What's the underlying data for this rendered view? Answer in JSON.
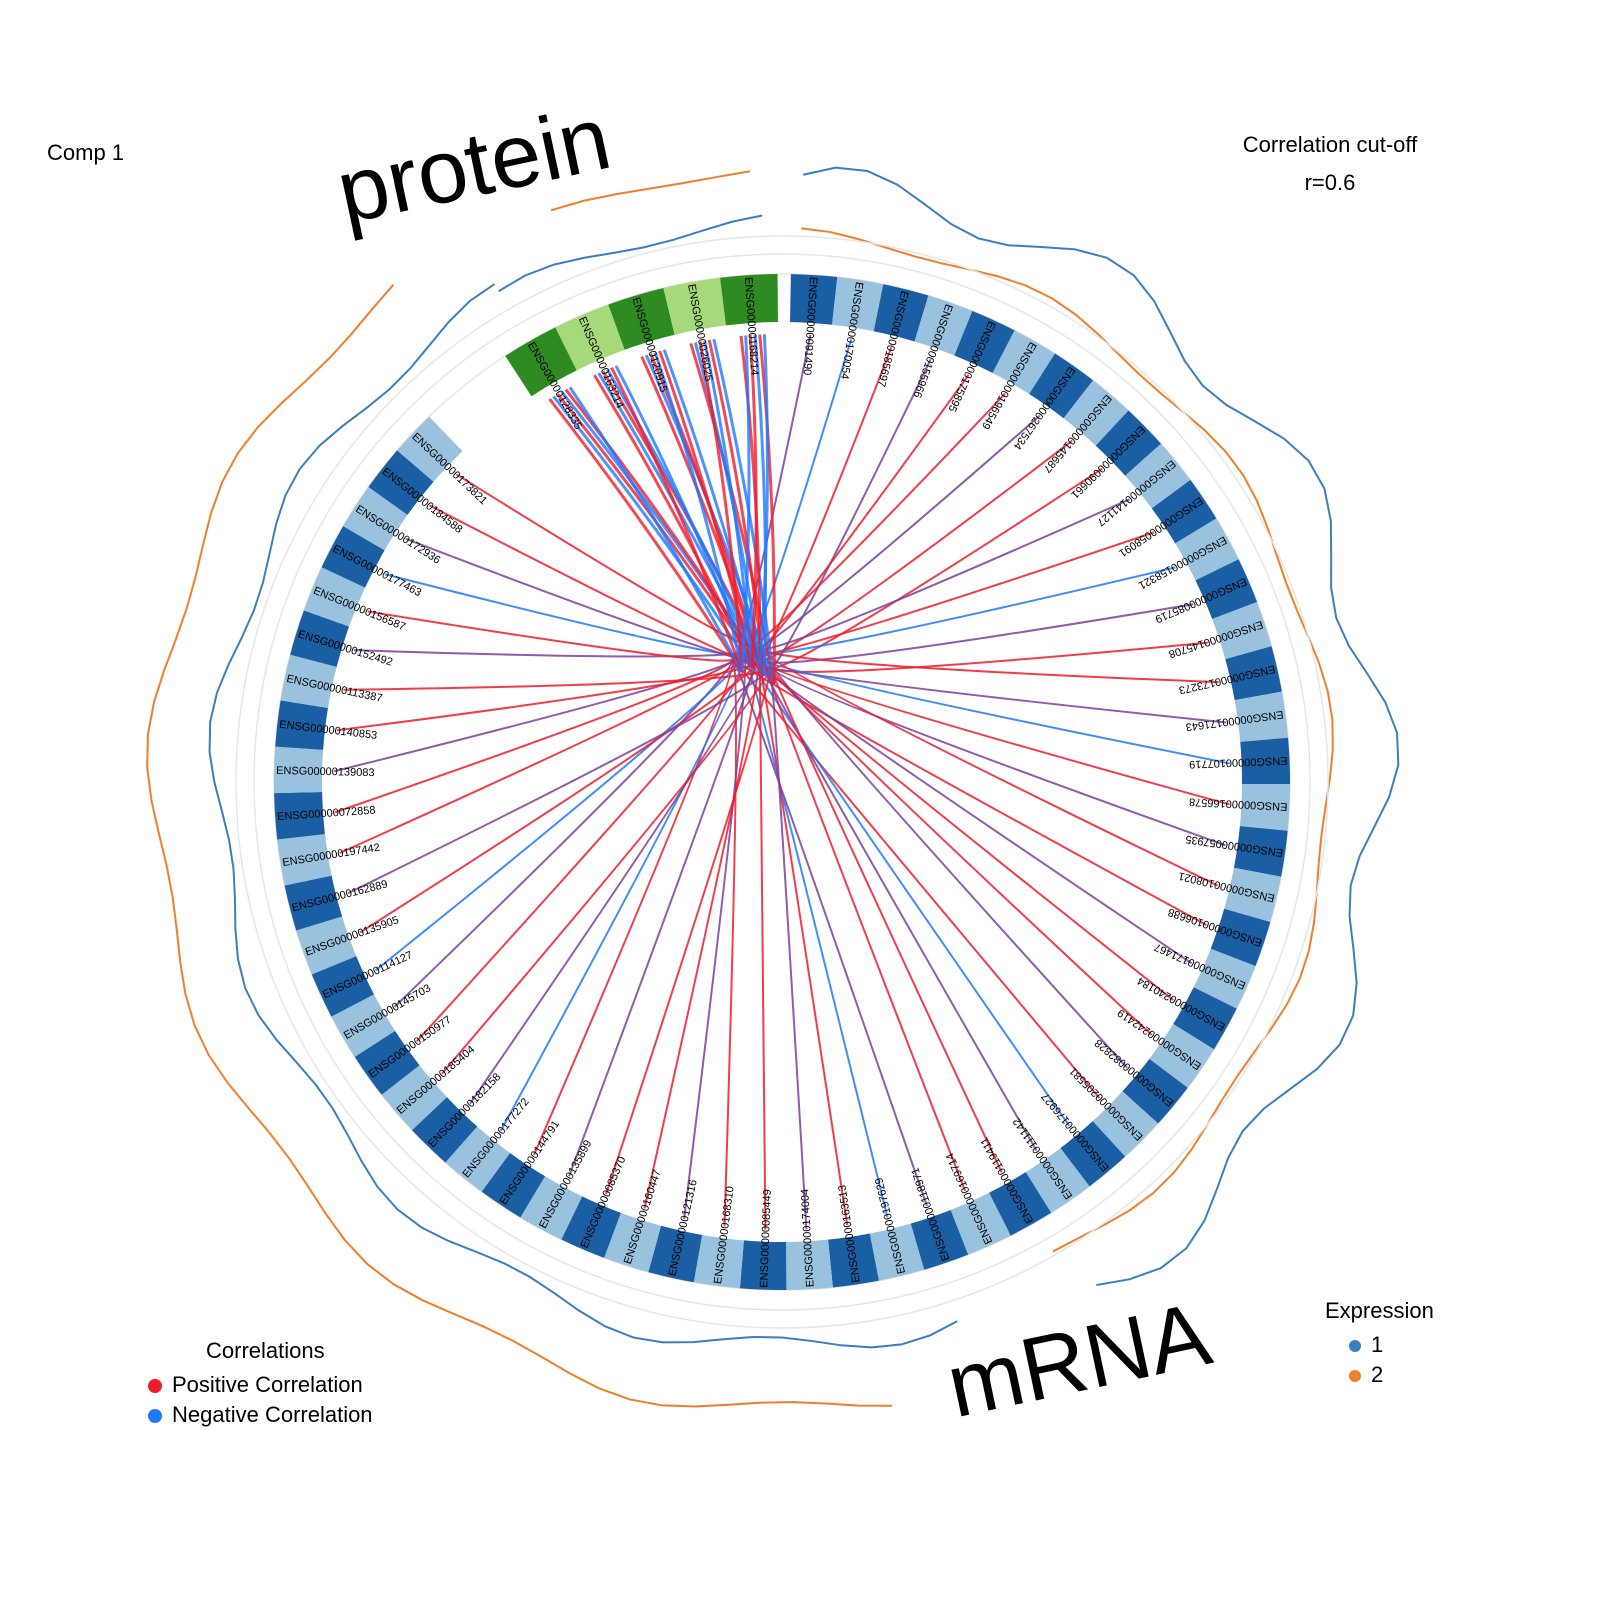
{
  "panel_label": "Comp 1",
  "cutoff": {
    "title": "Correlation cut-off",
    "value": "r=0.6"
  },
  "blocks": [
    {
      "name": "protein",
      "label": "protein"
    },
    {
      "name": "mRNA",
      "label": "mRNA"
    }
  ],
  "legend_correlations": {
    "title": "Correlations",
    "items": [
      {
        "label": "Positive Correlation",
        "color": "#ee1b2c"
      },
      {
        "label": "Negative Correlation",
        "color": "#1f78ff"
      }
    ]
  },
  "legend_expression": {
    "title": "Expression",
    "items": [
      {
        "label": "1",
        "color": "#3a7fc1"
      },
      {
        "label": "2",
        "color": "#f07f2a"
      }
    ]
  },
  "colors": {
    "protein_dark": "#2e8b22",
    "protein_light": "#a6d97a",
    "mrna_dark": "#1a5ea4",
    "mrna_light": "#99c2de",
    "positive": "#ee1b2c",
    "negative": "#1f78ff",
    "expr1": "#3a7fc1",
    "expr2": "#f07f2a"
  },
  "protein_features": [
    "ENSG00000128335",
    "ENSG00000163214",
    "ENSG00000120915",
    "ENSG00000026025",
    "ENSG00000168214"
  ],
  "mrna_features": [
    "ENSG00000091490",
    "ENSG00000170054",
    "ENSG00000185697",
    "ENSG00000155966",
    "ENSG00000175895",
    "ENSG00000196549",
    "ENSG00000267534",
    "ENSG00000145687",
    "ENSG00000090661",
    "ENSG00000141127",
    "ENSG00000058091",
    "ENSG00000158321",
    "ENSG00000085719",
    "ENSG00000145708",
    "ENSG00000173273",
    "ENSG00000171643",
    "ENSG00000107719",
    "ENSG00000166578",
    "ENSG00000057935",
    "ENSG00000108021",
    "ENSG00000106688",
    "ENSG00000171467",
    "ENSG00000240184",
    "ENSG00000242419",
    "ENSG00000082828",
    "ENSG00000205581",
    "ENSG00000176927",
    "ENSG00000111142",
    "ENSG00000119411",
    "ENSG00000169714",
    "ENSG00000118971",
    "ENSG00000197629",
    "ENSG00000163513",
    "ENSG00000174004",
    "ENSG00000085449",
    "ENSG00000168310",
    "ENSG00000121316",
    "ENSG00000160447",
    "ENSG00000085370",
    "ENSG00000135899",
    "ENSG00000144791",
    "ENSG00000177272",
    "ENSG00000182158",
    "ENSG00000185404",
    "ENSG00000150977",
    "ENSG00000145703",
    "ENSG00000114127",
    "ENSG00000135905",
    "ENSG00000162889",
    "ENSG00000197442",
    "ENSG00000072858",
    "ENSG00000139083",
    "ENSG00000140853",
    "ENSG00000113387",
    "ENSG00000152492",
    "ENSG00000156587",
    "ENSG00000177463",
    "ENSG00000172936",
    "ENSG00000184588",
    "ENSG00000173821"
  ]
}
